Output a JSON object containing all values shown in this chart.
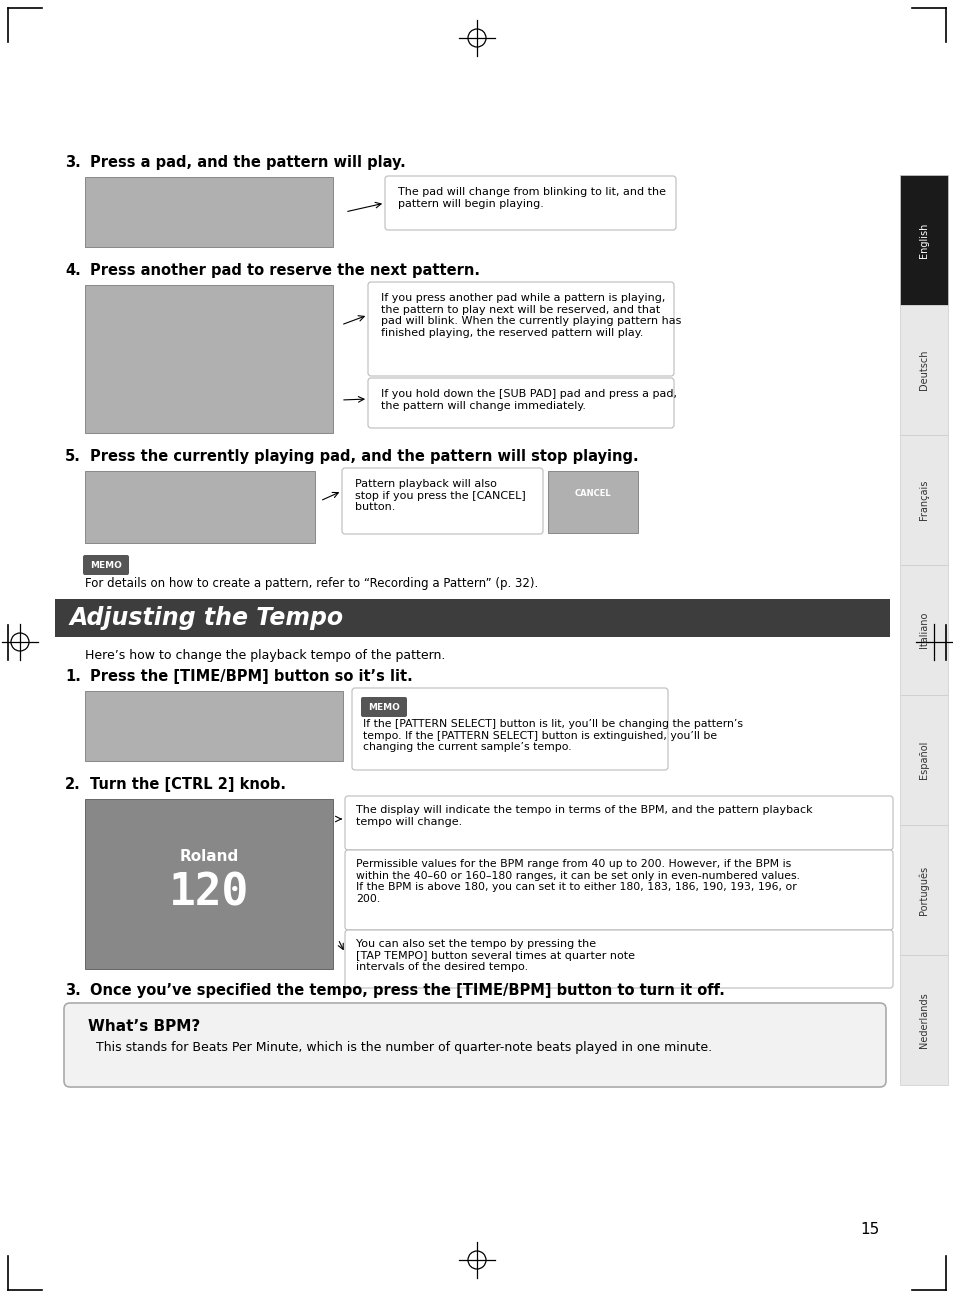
{
  "page_bg": "#ffffff",
  "sidebar_labels": [
    "English",
    "Deutsch",
    "Français",
    "Italiano",
    "Español",
    "Português",
    "Nederlands"
  ],
  "header_section_title": "Adjusting the Tempo",
  "header_section_subtitle": "Here’s how to change the playback tempo of the pattern.",
  "step3_title": "Press a pad, and the pattern will play.",
  "step3_note": "The pad will change from blinking to lit, and the\npattern will begin playing.",
  "step4_title": "Press another pad to reserve the next pattern.",
  "step4_note1": "If you press another pad while a pattern is playing,\nthe pattern to play next will be reserved, and that\npad will blink. When the currently playing pattern has\nfinished playing, the reserved pattern will play.",
  "step4_note2": "If you hold down the [SUB PAD] pad and press a pad,\nthe pattern will change immediately.",
  "step5_title": "Press the currently playing pad, and the pattern will stop playing.",
  "step5_note": "Pattern playback will also\nstop if you press the [CANCEL]\nbutton.",
  "memo1_text": "For details on how to create a pattern, refer to “Recording a Pattern” (p. 32).",
  "tempo_step1_title": "Press the [TIME/BPM] button so it’s lit.",
  "tempo_step1_memo": "If the [PATTERN SELECT] button is lit, you’ll be changing the pattern’s\ntempo. If the [PATTERN SELECT] button is extinguished, you’ll be\nchanging the current sample’s tempo.",
  "tempo_step2_title": "Turn the [CTRL 2] knob.",
  "tempo_step2_note1": "The display will indicate the tempo in terms of the BPM, and the pattern playback\ntempo will change.",
  "tempo_step2_note2": "Permissible values for the BPM range from 40 up to 200. However, if the BPM is\nwithin the 40–60 or 160–180 ranges, it can be set only in even-numbered values.\nIf the BPM is above 180, you can set it to either 180, 183, 186, 190, 193, 196, or\n200.",
  "tempo_step2_note3": "You can also set the tempo by pressing the\n[TAP TEMPO] button several times at quarter note\nintervals of the desired tempo.",
  "tempo_step3_title": "Once you’ve specified the tempo, press the [TIME/BPM] button to turn it off.",
  "whats_bpm_title": "What’s BPM?",
  "whats_bpm_text": "This stands for Beats Per Minute, which is the number of quarter-note beats played in one minute.",
  "page_number": "15"
}
